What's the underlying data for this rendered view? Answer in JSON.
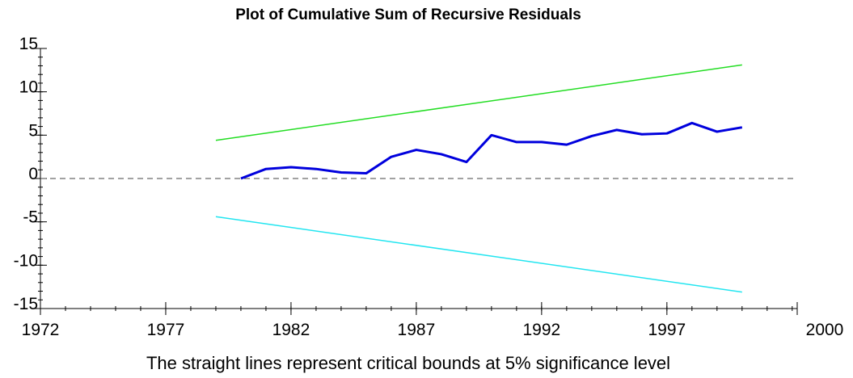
{
  "chart_data": {
    "type": "line",
    "title": "Plot of Cumulative Sum of Recursive Residuals",
    "caption": "The straight lines represent critical bounds at 5% significance level",
    "xlim": [
      1972,
      2002.2
    ],
    "xticks": [
      1972,
      1977,
      1982,
      1987,
      1992,
      1997
    ],
    "x_end_label": "2000",
    "ylim": [
      -15,
      15
    ],
    "yticks": [
      -15,
      -10,
      -5,
      0,
      5,
      10,
      15
    ],
    "reference_line": 0,
    "series": [
      {
        "color": "#0000dd",
        "x": [
          1980,
          1981,
          1982,
          1983,
          1984,
          1985,
          1986,
          1987,
          1988,
          1989,
          1990,
          1991,
          1992,
          1993,
          1994,
          1995,
          1996,
          1997,
          1998,
          1999,
          2000
        ],
        "values": [
          0,
          1.1,
          1.3,
          1.1,
          0.7,
          0.6,
          2.5,
          3.3,
          2.8,
          1.9,
          5.0,
          4.2,
          4.2,
          3.9,
          4.9,
          5.6,
          5.1,
          5.2,
          6.4,
          5.4,
          5.9
        ]
      },
      {
        "color": "#22dd22",
        "x": [
          1979,
          2000
        ],
        "values": [
          4.4,
          13.1
        ]
      },
      {
        "color": "#22e5f0",
        "x": [
          1979,
          2000
        ],
        "values": [
          -4.4,
          -13.1
        ]
      }
    ]
  }
}
